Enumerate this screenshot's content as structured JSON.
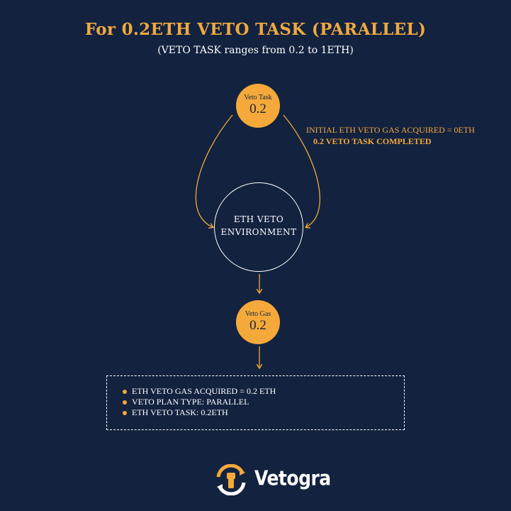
{
  "title": "For 0.2ETH VETO TASK (PARALLEL)",
  "subtitle": "(VETO TASK ranges from 0.2 to 1ETH)",
  "nodes": {
    "task": {
      "label": "Veto Task",
      "value": "0.2"
    },
    "environment": {
      "line1": "ETH VETO",
      "line2": "ENVIRONMENT"
    },
    "gas": {
      "label": "Veto Gas",
      "value": "0.2"
    }
  },
  "annotation": {
    "line1": "INITIAL ETH VETO GAS ACQUIRED = 0ETH",
    "line2": "0.2 VETO TASK COMPLETED"
  },
  "summary": [
    "ETH VETO GAS ACQUIRED = 0.2 ETH",
    "VETO PLAN TYPE: PARALLEL",
    "ETH VETO TASK: 0.2ETH"
  ],
  "brand": {
    "name": "Vetogra",
    "icon": "fist-cycle-logo-icon"
  },
  "colors": {
    "background": "#13223f",
    "accent": "#f4a93a",
    "text": "#ffffff"
  }
}
